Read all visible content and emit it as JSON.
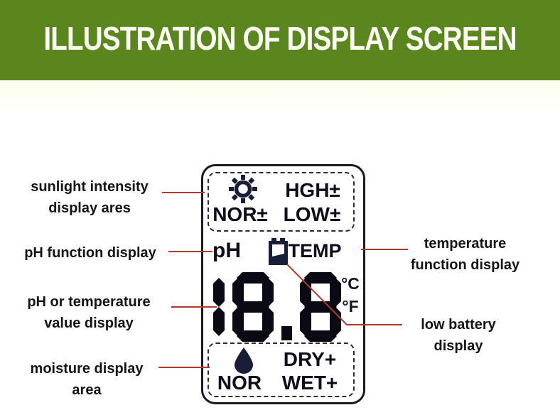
{
  "colors": {
    "header_bg": "#5a871d",
    "header_text": "#fdfdf6",
    "callout_line": "#b03a2e",
    "lcd_ink": "#0d0d1c",
    "icon_ink": "#181d38"
  },
  "header": {
    "title": "ILLUSTRATION OF DISPLAY SCREEN"
  },
  "device_screen": {
    "sunlight_area": {
      "icon": "sun-icon",
      "high": "HGH±",
      "nor": "NOR±",
      "low": "LOW±"
    },
    "ph_label": "pH",
    "battery_icon": "low-battery-icon",
    "temp_label": "TEMP",
    "value": "18.8",
    "unit_celsius": "°C",
    "unit_fahrenheit": "°F",
    "moisture_area": {
      "icon": "water-drop-icon",
      "dry": "DRY+",
      "nor": "NOR",
      "wet": "WET+"
    }
  },
  "callouts": {
    "sunlight": {
      "line1": "sunlight intensity",
      "line2": "display ares"
    },
    "ph": {
      "line1": "pH function display",
      "line2": ""
    },
    "value": {
      "line1": "pH or temperature",
      "line2": "value display"
    },
    "moisture": {
      "line1": "moisture display",
      "line2": "area"
    },
    "temperature": {
      "line1": "temperature",
      "line2": "function display"
    },
    "battery": {
      "line1": "low battery",
      "line2": "display"
    }
  }
}
